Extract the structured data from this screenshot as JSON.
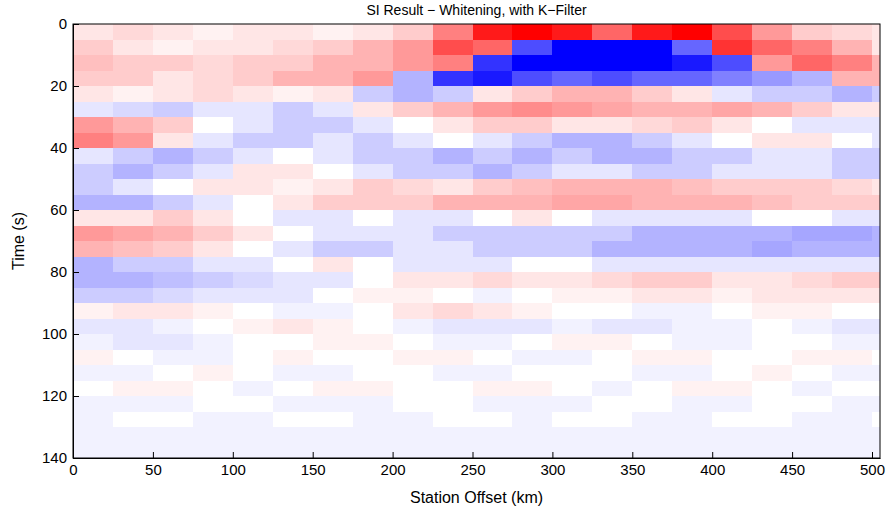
{
  "chart_data": {
    "type": "heatmap",
    "title": "SI Result − Whitening, with K−Filter",
    "x_label": "Station Offset (km)",
    "y_label": "Time (s)",
    "xlim": [
      0,
      505
    ],
    "ylim": [
      0,
      140
    ],
    "xticks": [
      0,
      50,
      100,
      150,
      200,
      250,
      300,
      350,
      400,
      450,
      500
    ],
    "yticks": [
      0,
      20,
      40,
      60,
      80,
      100,
      120,
      140
    ],
    "grid": false,
    "color_range": [
      -1,
      1
    ],
    "x": [
      0,
      25,
      50,
      75,
      100,
      125,
      150,
      175,
      200,
      225,
      250,
      275,
      300,
      325,
      350,
      375,
      400,
      425,
      450,
      475,
      500
    ],
    "y": [
      0,
      5,
      10,
      15,
      20,
      25,
      30,
      35,
      40,
      45,
      50,
      55,
      60,
      65,
      70,
      75,
      80,
      85,
      90,
      95,
      100,
      105,
      110,
      115,
      120,
      125,
      130,
      135
    ],
    "values": [
      [
        0.1,
        0.15,
        0.1,
        0.05,
        0.1,
        0.1,
        0.05,
        0.1,
        0.2,
        0.5,
        0.9,
        1,
        0.9,
        0.6,
        0.9,
        1,
        0.7,
        0.4,
        0.2,
        0.15,
        0.1
      ],
      [
        0.2,
        0.1,
        0.05,
        0.1,
        0.1,
        0.15,
        0.2,
        0.3,
        0.4,
        0.7,
        0.6,
        -0.7,
        -1,
        -1,
        -1,
        -0.6,
        0.8,
        0.6,
        0.5,
        0.3,
        0.1
      ],
      [
        0.25,
        0.2,
        0.2,
        0.15,
        0.2,
        0.2,
        0.3,
        0.3,
        0.4,
        0.5,
        -0.8,
        -1,
        -1,
        -1,
        -1,
        -0.9,
        -0.7,
        0.4,
        0.6,
        0.5,
        0.3
      ],
      [
        0.2,
        0.2,
        0.1,
        0.15,
        0.2,
        0.3,
        0.3,
        0.4,
        -0.3,
        -0.8,
        -0.9,
        -0.7,
        -0.6,
        -0.7,
        -0.6,
        -0.6,
        -0.5,
        -0.4,
        -0.3,
        0.3,
        0.3
      ],
      [
        0.1,
        0.05,
        0.1,
        0.15,
        0.1,
        0.05,
        0.1,
        -0.2,
        -0.3,
        -0.2,
        0.1,
        0.2,
        0.3,
        0.3,
        0.2,
        0.1,
        -0.1,
        -0.2,
        -0.2,
        -0.3,
        -0.2
      ],
      [
        -0.1,
        -0.15,
        -0.2,
        -0.1,
        -0.1,
        -0.2,
        -0.1,
        0.1,
        0.2,
        0.3,
        0.4,
        0.45,
        0.4,
        0.35,
        0.3,
        0.3,
        0.35,
        0.3,
        0.2,
        0.1,
        0.1
      ],
      [
        0.4,
        0.3,
        0.2,
        0,
        -0.1,
        -0.2,
        -0.2,
        -0.1,
        0,
        0.1,
        0.2,
        0.2,
        0.1,
        0.1,
        0.15,
        0.2,
        0.1,
        0,
        -0.1,
        -0.1,
        -0.1
      ],
      [
        0.5,
        0.4,
        0.1,
        -0.1,
        -0.2,
        -0.2,
        -0.1,
        -0.2,
        -0.1,
        0,
        -0.1,
        -0.2,
        -0.3,
        -0.3,
        -0.2,
        -0.1,
        0,
        0.1,
        0.1,
        0,
        -0.1
      ],
      [
        -0.1,
        -0.2,
        -0.3,
        -0.2,
        -0.1,
        0,
        -0.1,
        -0.2,
        -0.2,
        -0.3,
        -0.2,
        -0.3,
        -0.2,
        -0.3,
        -0.3,
        -0.2,
        -0.2,
        -0.1,
        -0.1,
        -0.2,
        -0.2
      ],
      [
        -0.2,
        -0.3,
        -0.2,
        -0.1,
        0.1,
        0.1,
        0,
        -0.1,
        -0.2,
        -0.2,
        -0.3,
        -0.2,
        -0.1,
        -0.1,
        -0.2,
        -0.2,
        -0.1,
        -0.1,
        -0.1,
        -0.2,
        -0.2
      ],
      [
        -0.2,
        -0.1,
        0,
        0.1,
        0.1,
        0.05,
        0.1,
        0.2,
        0.15,
        0.1,
        0.2,
        0.25,
        0.3,
        0.3,
        0.3,
        0.25,
        0.2,
        0.2,
        0.2,
        0.15,
        0.1
      ],
      [
        -0.3,
        -0.3,
        -0.2,
        -0.1,
        0,
        0.1,
        0.2,
        0.2,
        0.2,
        0.3,
        0.3,
        0.3,
        0.35,
        0.35,
        0.3,
        0.3,
        0.3,
        0.25,
        0.2,
        0.2,
        0.2
      ],
      [
        0.1,
        0.1,
        0.2,
        0.1,
        0,
        -0.1,
        -0.1,
        0,
        -0.1,
        -0.1,
        0,
        0.1,
        0,
        -0.1,
        -0.1,
        -0.1,
        -0.1,
        0,
        0,
        -0.1,
        -0.1
      ],
      [
        0.4,
        0.35,
        0.3,
        0.2,
        0.1,
        0,
        -0.1,
        -0.1,
        -0.1,
        -0.2,
        -0.2,
        -0.2,
        -0.2,
        -0.2,
        -0.3,
        -0.3,
        -0.3,
        -0.3,
        -0.35,
        -0.35,
        -0.3
      ],
      [
        0.3,
        0.25,
        0.2,
        0.1,
        0,
        -0.1,
        -0.2,
        -0.2,
        -0.1,
        -0.1,
        -0.2,
        -0.2,
        -0.2,
        -0.3,
        -0.3,
        -0.3,
        -0.3,
        -0.35,
        -0.3,
        -0.3,
        -0.3
      ],
      [
        -0.3,
        -0.2,
        -0.2,
        -0.1,
        -0.1,
        0,
        0.1,
        0,
        -0.1,
        -0.1,
        -0.1,
        0,
        0,
        -0.1,
        -0.1,
        -0.1,
        -0.1,
        -0.1,
        -0.1,
        -0.1,
        -0.1
      ],
      [
        -0.3,
        -0.3,
        -0.25,
        -0.2,
        -0.15,
        -0.1,
        -0.1,
        0,
        0.1,
        0.1,
        0.15,
        0.1,
        0.1,
        0.15,
        0.2,
        0.2,
        0.1,
        0.1,
        0.15,
        0.2,
        0.2
      ],
      [
        -0.2,
        -0.2,
        -0.15,
        -0.1,
        -0.1,
        -0.1,
        0,
        0.05,
        0.05,
        0,
        -0.05,
        0,
        0.05,
        0.05,
        0.1,
        0.1,
        0.05,
        0.1,
        0.1,
        0.1,
        0.1
      ],
      [
        0.05,
        0.1,
        0.1,
        0.05,
        0,
        -0.05,
        -0.05,
        0,
        0.1,
        0.15,
        0.1,
        0.05,
        0,
        0,
        -0.05,
        -0.05,
        0,
        0.05,
        0.05,
        0,
        0
      ],
      [
        -0.1,
        -0.1,
        -0.05,
        0,
        0.05,
        0.1,
        0.05,
        0,
        -0.05,
        -0.1,
        -0.1,
        -0.1,
        -0.05,
        -0.1,
        -0.1,
        -0.05,
        -0.05,
        0,
        -0.05,
        -0.1,
        -0.1
      ],
      [
        -0.05,
        -0.1,
        -0.1,
        -0.05,
        0,
        0,
        0.05,
        0.05,
        0,
        -0.05,
        -0.05,
        0,
        0.05,
        0.05,
        0,
        -0.05,
        -0.05,
        0,
        0,
        -0.05,
        -0.05
      ],
      [
        0.05,
        0,
        -0.05,
        -0.05,
        0,
        0.05,
        0,
        0,
        0.05,
        0.05,
        0,
        -0.05,
        -0.05,
        0,
        0.05,
        0.05,
        0,
        0,
        0.05,
        0.05,
        0
      ],
      [
        -0.05,
        -0.05,
        0,
        0.05,
        0,
        -0.05,
        -0.05,
        0,
        0,
        -0.05,
        -0.05,
        0,
        0,
        0,
        -0.05,
        -0.05,
        0,
        0.05,
        0,
        -0.05,
        -0.05
      ],
      [
        0,
        0.05,
        0.05,
        0,
        -0.05,
        0,
        0.05,
        0.05,
        0,
        0,
        0.05,
        0.05,
        0,
        -0.05,
        0,
        0.05,
        0.05,
        0,
        -0.05,
        0,
        0
      ],
      [
        -0.05,
        -0.05,
        -0.05,
        0,
        0,
        -0.05,
        -0.05,
        -0.05,
        0,
        0,
        -0.05,
        -0.05,
        -0.05,
        0,
        0,
        -0.05,
        -0.05,
        0,
        0,
        -0.05,
        -0.05
      ],
      [
        -0.05,
        0,
        0,
        -0.05,
        -0.05,
        0,
        0,
        -0.05,
        -0.05,
        0,
        0,
        -0.05,
        0,
        0,
        -0.05,
        -0.05,
        0,
        0,
        -0.05,
        -0.05,
        0
      ],
      [
        -0.05,
        -0.05,
        -0.05,
        -0.05,
        -0.05,
        -0.05,
        -0.05,
        -0.05,
        -0.05,
        -0.05,
        -0.05,
        -0.05,
        -0.05,
        -0.05,
        -0.05,
        -0.05,
        -0.05,
        -0.05,
        -0.05,
        -0.05,
        -0.05
      ],
      [
        -0.05,
        -0.05,
        -0.05,
        -0.05,
        -0.05,
        -0.05,
        -0.05,
        -0.05,
        -0.05,
        -0.05,
        -0.05,
        -0.05,
        -0.05,
        -0.05,
        -0.05,
        -0.05,
        -0.05,
        -0.05,
        -0.05,
        -0.05,
        -0.05
      ]
    ]
  }
}
